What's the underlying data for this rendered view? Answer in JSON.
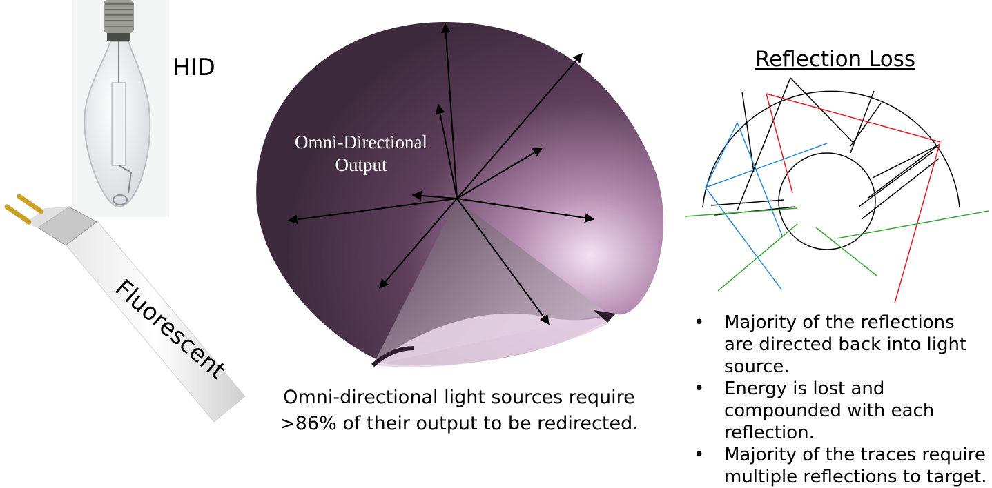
{
  "labels": {
    "hid": "HID",
    "fluorescent": "Fluorescent",
    "omni_output": "Omni-Directional Output"
  },
  "caption": "Omni-directional light sources require >86% of their output to be redirected.",
  "reflection": {
    "title": "Reflection Loss",
    "bullets": [
      "Majority of the reflections are directed back into light source.",
      "Energy is lost and compounded with each reflection.",
      "Majority of the traces require multiple reflections to target."
    ]
  },
  "colors": {
    "reflector": "#4a3048",
    "glow": "#f1d9f0",
    "trace_red": "#e21b23",
    "trace_blue": "#2a8ad6",
    "trace_green": "#3aa53a"
  }
}
